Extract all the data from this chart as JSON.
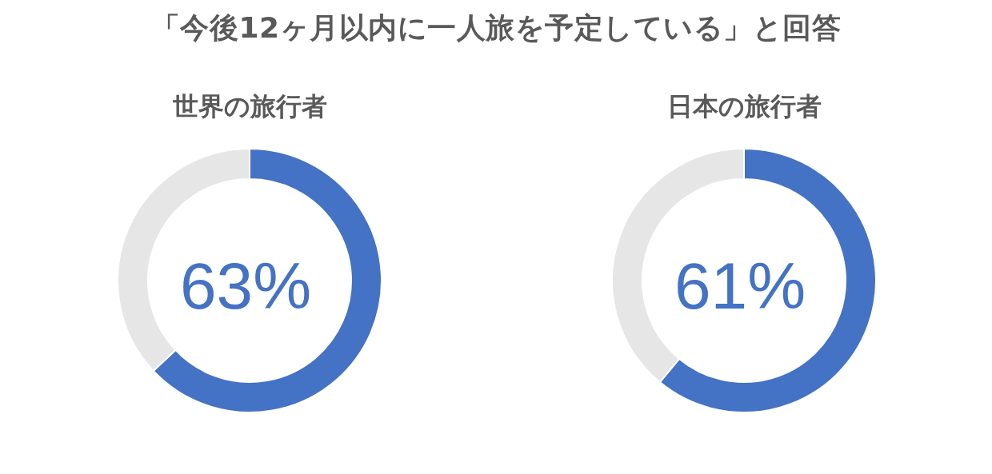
{
  "chart_data": [
    {
      "type": "donut",
      "title": "「今後12ヶ月以内に一人旅を予定している」と回答",
      "subtitle": "世界の旅行者",
      "categories": [
        null,
        null
      ],
      "values": [
        63,
        37
      ],
      "colors": [
        "#4472c4",
        "#e7e6e6"
      ],
      "annotations": [
        "63%"
      ]
    },
    {
      "type": "donut",
      "subtitle": "日本の旅行者",
      "categories": [
        null,
        null
      ],
      "values": [
        61,
        39
      ],
      "colors": [
        "#4472c4",
        "#e7e6e6"
      ],
      "annotations": [
        "61%"
      ]
    }
  ]
}
